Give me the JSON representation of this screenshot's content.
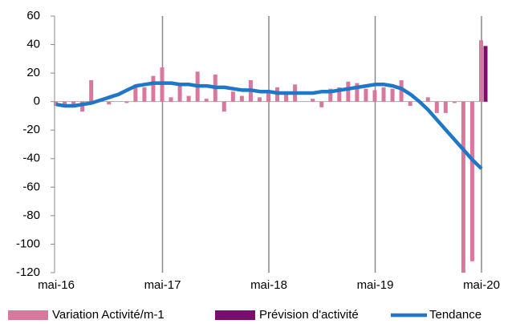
{
  "chart_data": {
    "type": "bar",
    "categories": [
      "mai-16",
      null,
      null,
      null,
      null,
      null,
      null,
      null,
      null,
      null,
      null,
      null,
      "mai-17",
      null,
      null,
      null,
      null,
      null,
      null,
      null,
      null,
      null,
      null,
      null,
      "mai-18",
      null,
      null,
      null,
      null,
      null,
      null,
      null,
      null,
      null,
      null,
      null,
      "mai-19",
      null,
      null,
      null,
      null,
      null,
      null,
      null,
      null,
      null,
      null,
      null,
      "mai-20"
    ],
    "series": [
      {
        "name": "Variation Activité/m-1",
        "type": "bar",
        "color": "#d9789c",
        "values": [
          -3,
          -3,
          -4,
          -7,
          15,
          0,
          -2,
          0,
          -1,
          12,
          10,
          18,
          24,
          3,
          12,
          4,
          21,
          2,
          19,
          -7,
          7,
          4,
          15,
          3,
          8,
          10,
          6,
          12,
          0,
          2,
          -4,
          9,
          10,
          14,
          13,
          9,
          8,
          10,
          9,
          15,
          -3,
          0,
          3,
          -8,
          -8,
          -1,
          -120,
          -112,
          43
        ]
      },
      {
        "name": "Prévision d'activité",
        "type": "bar",
        "color": "#7b0d6e",
        "values": [
          null,
          null,
          null,
          null,
          null,
          null,
          null,
          null,
          null,
          null,
          null,
          null,
          null,
          null,
          null,
          null,
          null,
          null,
          null,
          null,
          null,
          null,
          null,
          null,
          null,
          null,
          null,
          null,
          null,
          null,
          null,
          null,
          null,
          null,
          null,
          null,
          null,
          null,
          null,
          null,
          null,
          null,
          null,
          null,
          null,
          null,
          null,
          null,
          39
        ]
      },
      {
        "name": "Tendance",
        "type": "line",
        "color": "#1f77c8",
        "values": [
          -2,
          -3,
          -3,
          -2,
          -1,
          1,
          3,
          5,
          8,
          11,
          12,
          13,
          13,
          13,
          12,
          12,
          11,
          11,
          10,
          10,
          9,
          8,
          8,
          7,
          7,
          6,
          6,
          6,
          6,
          6,
          7,
          7,
          8,
          9,
          10,
          11,
          12,
          12,
          11,
          9,
          5,
          0,
          -6,
          -13,
          -20,
          -27,
          -34,
          -41,
          -47
        ]
      }
    ],
    "ylim": [
      -120,
      60
    ],
    "yticks": [
      -120,
      -100,
      -80,
      -60,
      -40,
      -20,
      0,
      20,
      40,
      60
    ],
    "legend": "bottom"
  }
}
